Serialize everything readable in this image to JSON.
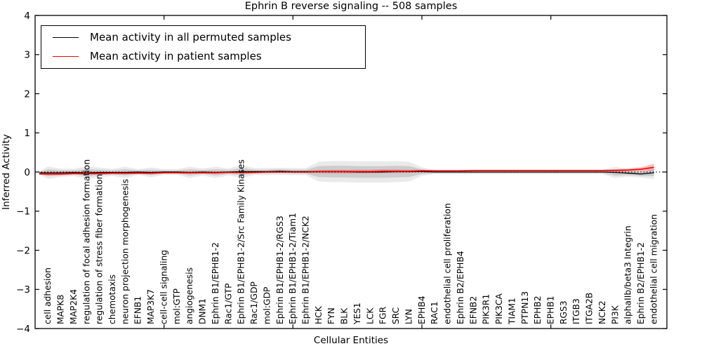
{
  "title": "Ephrin B reverse signaling -- 508 samples",
  "legend": {
    "entries": [
      {
        "label": "Mean activity in all permuted samples",
        "color": "#000000"
      },
      {
        "label": "Mean activity in patient samples",
        "color": "#ff0000"
      }
    ]
  },
  "chart_data": {
    "type": "line",
    "title": "Ephrin B reverse signaling -- 508 samples",
    "xlabel": "Cellular Entities",
    "ylabel": "Inferred Activity",
    "ylim": [
      -4,
      4
    ],
    "yticks": [
      4,
      3,
      2,
      1,
      0,
      -1,
      -2,
      -3,
      -4
    ],
    "xtick_positions": [
      10,
      20,
      30,
      40
    ],
    "grid": false,
    "legend_position": "upper left",
    "zero_reference_line": {
      "y": 0,
      "style": "dotted",
      "color": "#000000"
    },
    "categories": [
      "cell adhesion",
      "MAPK8",
      "MAP2K4",
      "regulation of focal adhesion formation",
      "regulation of stress fiber formation",
      "chemotaxis",
      "neuron projection morphogenesis",
      "EFNB1",
      "MAP3K7",
      "cell-cell signaling",
      "mol:GTP",
      "angiogenesis",
      "DNM1",
      "Ephrin B1/EPHB1-2",
      "Rac1/GTP",
      "Ephrin B1/EPHB1-2/Src Family Kinases",
      "Rac1/GDP",
      "mol:GDP",
      "Ephrin B1/EPHB1-2/RGS3",
      "Ephrin B1/EPHB1-2/Tiam1",
      "Ephrin B1/EPHB1-2/NCK2",
      "HCK",
      "FYN",
      "BLK",
      "YES1",
      "LCK",
      "FGR",
      "SRC",
      "LYN",
      "EPHB4",
      "RAC1",
      "endothelial cell proliferation",
      "Ephrin B2/EPHB4",
      "EFNB2",
      "PIK3R1",
      "PIK3CA",
      "TIAM1",
      "PTPN13",
      "EPHB2",
      "EPHB1",
      "RGS3",
      "ITGB3",
      "ITGA2B",
      "NCK2",
      "PI3K",
      "alphaIIb/beta3 Integrin",
      "Ephrin B2/EPHB1-2",
      "endothelial cell migration"
    ],
    "series": [
      {
        "name": "Mean activity in all permuted samples",
        "color": "#000000",
        "band_color": "#c6c6c6",
        "band_outer_color": "#dcdcdc",
        "values": [
          -0.02,
          -0.02,
          -0.01,
          -0.02,
          -0.01,
          -0.01,
          -0.01,
          0,
          -0.01,
          0,
          0,
          -0.01,
          0,
          -0.01,
          0,
          0.01,
          0.01,
          0.01,
          0.02,
          0.01,
          0.01,
          0.01,
          0.01,
          0.01,
          0,
          0,
          0,
          0.01,
          0.01,
          0.01,
          0,
          0,
          0,
          0,
          0,
          0,
          0,
          0,
          0,
          0,
          0,
          0,
          0,
          0,
          -0.01,
          -0.03,
          -0.05,
          -0.02
        ],
        "band_halfwidth": [
          0.09,
          0.06,
          0.05,
          0.09,
          0.07,
          0.05,
          0.08,
          0.04,
          0.07,
          0.04,
          0.04,
          0.08,
          0.05,
          0.08,
          0.05,
          0.09,
          0.05,
          0.05,
          0.05,
          0.05,
          0.05,
          0.14,
          0.15,
          0.15,
          0.15,
          0.15,
          0.15,
          0.15,
          0.14,
          0.06,
          0.03,
          0.03,
          0.03,
          0.03,
          0.03,
          0.03,
          0.03,
          0.03,
          0.03,
          0.03,
          0.03,
          0.03,
          0.03,
          0.03,
          0.08,
          0.05,
          0.05,
          0.09
        ]
      },
      {
        "name": "Mean activity in patient samples",
        "color": "#ff0000",
        "band_color": "#ff9999",
        "values": [
          -0.05,
          -0.05,
          -0.04,
          -0.04,
          -0.04,
          -0.03,
          -0.03,
          -0.03,
          -0.03,
          -0.02,
          -0.02,
          -0.02,
          -0.02,
          -0.02,
          -0.01,
          -0.01,
          -0.01,
          0,
          0,
          0,
          0,
          0.01,
          0.01,
          0.01,
          0.01,
          0.01,
          0.02,
          0.02,
          0.02,
          0.03,
          0.03,
          0.03,
          0.03,
          0.04,
          0.04,
          0.04,
          0.04,
          0.04,
          0.04,
          0.04,
          0.04,
          0.04,
          0.04,
          0.04,
          0.04,
          0.05,
          0.07,
          0.12
        ],
        "band_halfwidth": [
          0.035,
          0.03,
          0.03,
          0.03,
          0.03,
          0.025,
          0.03,
          0.02,
          0.025,
          0.02,
          0.02,
          0.03,
          0.02,
          0.03,
          0.02,
          0.035,
          0.02,
          0.02,
          0.02,
          0.02,
          0.025,
          0.04,
          0.045,
          0.045,
          0.045,
          0.045,
          0.045,
          0.045,
          0.04,
          0.03,
          0.015,
          0.015,
          0.015,
          0.015,
          0.015,
          0.015,
          0.015,
          0.015,
          0.015,
          0.015,
          0.015,
          0.015,
          0.015,
          0.015,
          0.03,
          0.04,
          0.05,
          0.09
        ]
      }
    ]
  }
}
